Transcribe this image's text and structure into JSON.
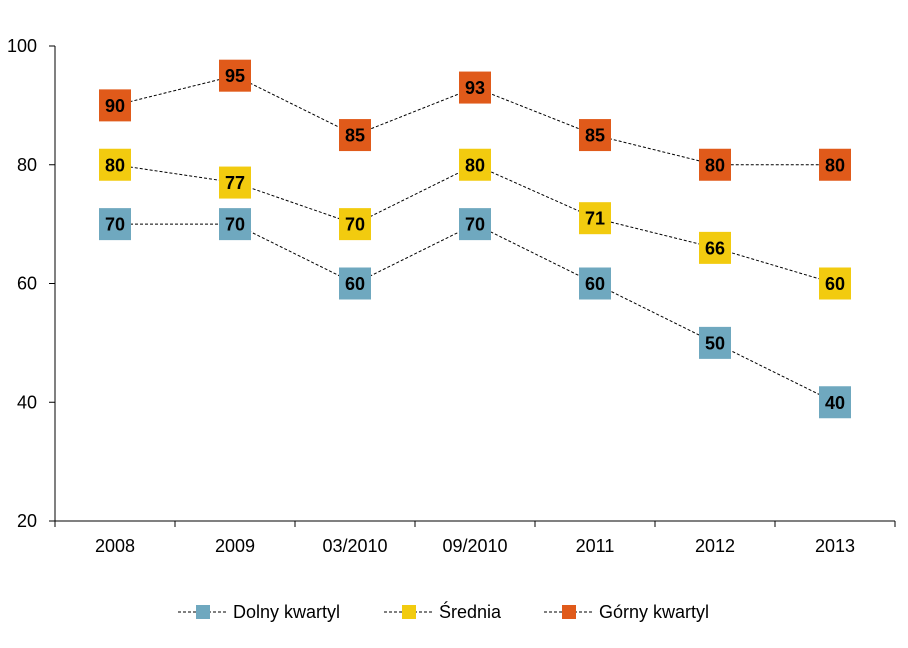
{
  "chart_data": {
    "type": "line",
    "categories": [
      "2008",
      "2009",
      "03/2010",
      "09/2010",
      "2011",
      "2012",
      "2013"
    ],
    "ylim": [
      20,
      100
    ],
    "yticks": [
      20,
      40,
      60,
      80,
      100
    ],
    "grid": false,
    "legend_position": "bottom",
    "series": [
      {
        "name": "Dolny kwartyl",
        "color": "#6fa8bf",
        "marker": "square",
        "line_style": "dashed",
        "values": [
          70,
          70,
          60,
          70,
          60,
          50,
          40
        ]
      },
      {
        "name": "Średnia",
        "color": "#f2cb0f",
        "marker": "square",
        "line_style": "dashed",
        "values": [
          80,
          77,
          70,
          80,
          71,
          66,
          60
        ]
      },
      {
        "name": "Górny kwartyl",
        "color": "#e05a1a",
        "marker": "square",
        "line_style": "dashed",
        "values": [
          90,
          95,
          85,
          93,
          85,
          80,
          80
        ]
      }
    ]
  }
}
